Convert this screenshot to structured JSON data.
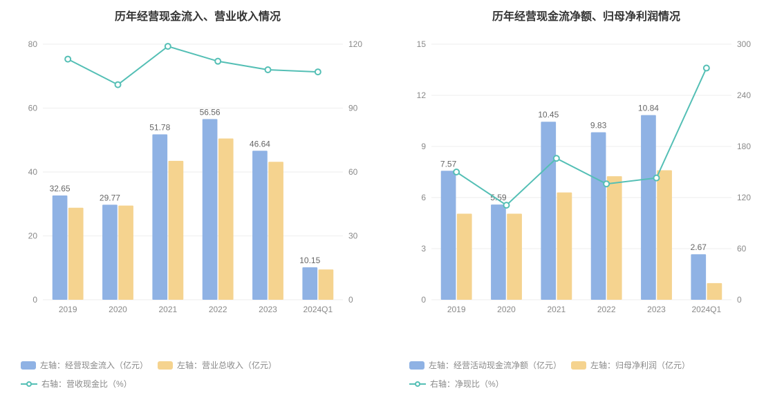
{
  "left_chart": {
    "type": "bar+line",
    "title": "历年经营现金流入、营业收入情况",
    "categories": [
      "2019",
      "2020",
      "2021",
      "2022",
      "2023",
      "2024Q1"
    ],
    "series1": {
      "name": "左轴：经营现金流入（亿元）",
      "color": "#8fb2e4",
      "values": [
        32.65,
        29.77,
        51.78,
        56.56,
        46.64,
        10.15
      ],
      "labels": [
        "32.65",
        "29.77",
        "51.78",
        "56.56",
        "46.64",
        "10.15"
      ]
    },
    "series2": {
      "name": "左轴：营业总收入（亿元）",
      "color": "#f5d38f",
      "values": [
        28.8,
        29.5,
        43.5,
        50.5,
        43.2,
        9.5
      ]
    },
    "line": {
      "name": "右轴：营收现金比（%）",
      "color": "#54bfb5",
      "values": [
        113,
        101,
        119,
        112,
        108,
        107
      ]
    },
    "left_axis": {
      "min": 0,
      "max": 80,
      "step": 20
    },
    "right_axis": {
      "min": 0,
      "max": 120,
      "step": 30
    },
    "background_color": "#ffffff",
    "grid_color": "#eeeeee",
    "axis_text_color": "#898989",
    "label_text_color": "#666666",
    "title_fontsize": 16,
    "axis_fontsize": 12,
    "bar_group_width": 0.62,
    "bar_gap": 0.02
  },
  "right_chart": {
    "type": "bar+line",
    "title": "历年经营现金流净额、归母净利润情况",
    "categories": [
      "2019",
      "2020",
      "2021",
      "2022",
      "2023",
      "2024Q1"
    ],
    "series1": {
      "name": "左轴：经营活动现金流净额（亿元）",
      "color": "#8fb2e4",
      "values": [
        7.57,
        5.59,
        10.45,
        9.83,
        10.84,
        2.67
      ],
      "labels": [
        "7.57",
        "5.59",
        "10.45",
        "9.83",
        "10.84",
        "2.67"
      ]
    },
    "series2": {
      "name": "左轴：归母净利润（亿元）",
      "color": "#f5d38f",
      "values": [
        5.05,
        5.05,
        6.3,
        7.25,
        7.6,
        0.98
      ]
    },
    "line": {
      "name": "右轴：净现比（%）",
      "color": "#54bfb5",
      "values": [
        150,
        111,
        166,
        136,
        143,
        272
      ]
    },
    "left_axis": {
      "min": 0,
      "max": 15,
      "step": 3
    },
    "right_axis": {
      "min": 0,
      "max": 300,
      "step": 60
    },
    "background_color": "#ffffff",
    "grid_color": "#eeeeee",
    "axis_text_color": "#898989",
    "label_text_color": "#666666",
    "title_fontsize": 16,
    "axis_fontsize": 12,
    "bar_group_width": 0.62,
    "bar_gap": 0.02
  }
}
